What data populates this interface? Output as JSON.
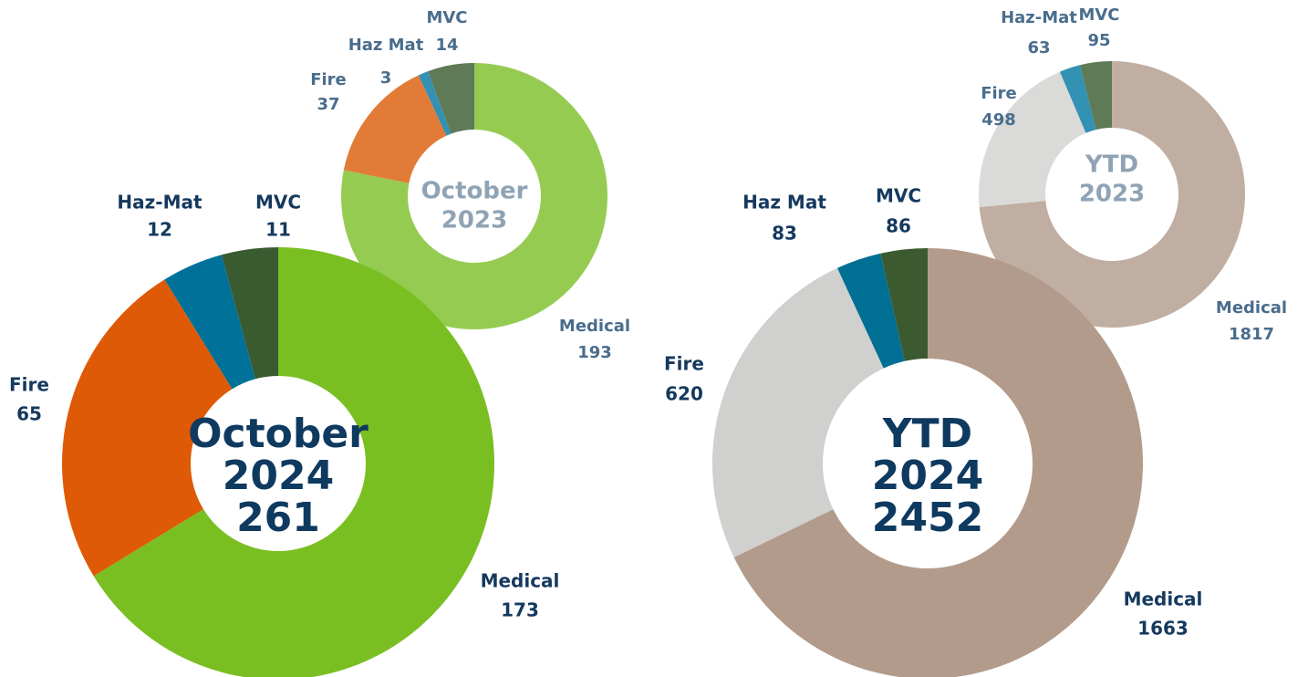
{
  "chart_data": [
    {
      "type": "pie",
      "center": [
        "October",
        "2024"
      ],
      "total": 261,
      "categories": [
        "Medical",
        "Fire",
        "Haz-Mat",
        "MVC"
      ],
      "values": [
        173,
        65,
        12,
        11
      ],
      "colors": [
        "#7abf22",
        "#de5a07",
        "#007199",
        "#3a5a2f"
      ]
    },
    {
      "type": "pie",
      "center": [
        "October",
        "2023"
      ],
      "categories": [
        "Medical",
        "Fire",
        "Haz Mat",
        "MVC"
      ],
      "values": [
        193,
        37,
        3,
        14
      ],
      "colors": [
        "#96cb52",
        "#e37b38",
        "#3391b3",
        "#5f7a56"
      ]
    },
    {
      "type": "pie",
      "center": [
        "YTD",
        "2024"
      ],
      "total": 2452,
      "categories": [
        "Medical",
        "Fire",
        "Haz Mat",
        "MVC"
      ],
      "values": [
        1663,
        620,
        83,
        86
      ],
      "colors": [
        "#b39b8b",
        "#d0d0ce",
        "#006f94",
        "#3b5a2f"
      ]
    },
    {
      "type": "pie",
      "center": [
        "YTD",
        "2023"
      ],
      "categories": [
        "Medical",
        "Fire",
        "Haz-Mat",
        "MVC"
      ],
      "values": [
        1817,
        498,
        63,
        95
      ],
      "colors": [
        "#c1aea2",
        "#dadad8",
        "#3391b3",
        "#5f7a56"
      ]
    }
  ]
}
